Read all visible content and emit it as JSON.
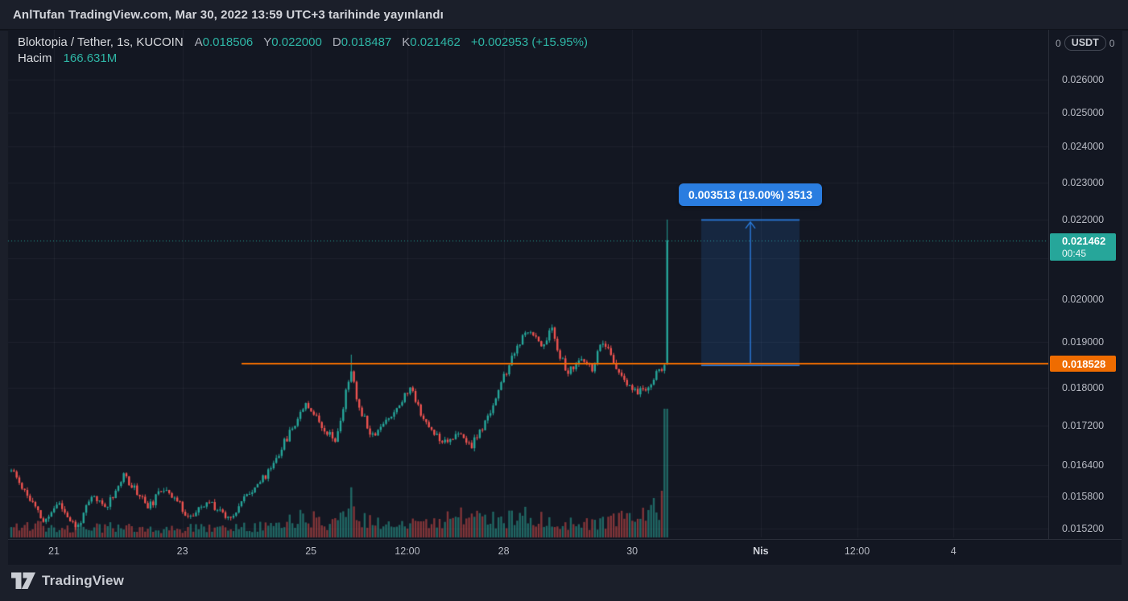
{
  "banner": {
    "text": "AnlTufan TradingView.com, Mar 30, 2022 13:59 UTC+3 tarihinde yayınlandı"
  },
  "legend": {
    "title": "Bloktopia / Tether, 1s, KUCOIN",
    "ohlc": [
      {
        "label": "A",
        "value": "0.018506"
      },
      {
        "label": "Y",
        "value": "0.022000"
      },
      {
        "label": "D",
        "value": "0.018487"
      },
      {
        "label": "K",
        "value": "0.021462"
      }
    ],
    "change": "+0.002953 (+15.95%)",
    "volume_label": "Hacim",
    "volume_value": "166.631M"
  },
  "price_scale": {
    "unit_left": "0",
    "unit": "USDT",
    "unit_right": "0",
    "last_badge": {
      "price": "0.021462",
      "countdown": "00:45",
      "color": "#26a69a"
    },
    "level_badge": {
      "price": "0.018528",
      "color": "#ef6c00"
    }
  },
  "footer": {
    "brand": "TradingView"
  },
  "chart_data": {
    "type": "candlestick",
    "title": "Bloktopia / Tether, 1s, KUCOIN",
    "exchange": "KUCOIN",
    "interval": "1s",
    "yscale": "log",
    "ylim": [
      0.01495,
      0.0278
    ],
    "x_domain": [
      "Mar 20 2022",
      "Apr 5 2022"
    ],
    "last_bar": {
      "open": 0.018506,
      "high": 0.022,
      "low": 0.018487,
      "close": 0.021462,
      "volume": "166.631M"
    },
    "y_ticks": [
      {
        "label": "0.026000",
        "p": 0.026
      },
      {
        "label": "0.025000",
        "p": 0.025
      },
      {
        "label": "0.024000",
        "p": 0.024
      },
      {
        "label": "0.023000",
        "p": 0.023
      },
      {
        "label": "0.022000",
        "p": 0.022
      },
      {
        "label": "0.020000",
        "p": 0.02
      },
      {
        "label": "0.019000",
        "p": 0.019
      },
      {
        "label": "0.018000",
        "p": 0.018
      },
      {
        "label": "0.017200",
        "p": 0.0172
      },
      {
        "label": "0.016400",
        "p": 0.0164
      },
      {
        "label": "0.015800",
        "p": 0.0158
      },
      {
        "label": "0.015200",
        "p": 0.0152
      }
    ],
    "grid_prices": [
      0.026,
      0.025,
      0.024,
      0.023,
      0.022,
      0.021,
      0.02,
      0.019,
      0.018,
      0.0172,
      0.0164,
      0.0158,
      0.0152
    ],
    "x_ticks": [
      {
        "label": "21",
        "t": 1.0
      },
      {
        "label": "23",
        "t": 3.0
      },
      {
        "label": "25",
        "t": 5.0
      },
      {
        "label": "12:00",
        "t": 6.5
      },
      {
        "label": "28",
        "t": 8.0
      },
      {
        "label": "30",
        "t": 10.0
      },
      {
        "label": "Nis",
        "t": 12.0,
        "bold": true
      },
      {
        "label": "12:00",
        "t": 13.5
      },
      {
        "label": "4",
        "t": 15.0
      }
    ],
    "price_anchors": [
      [
        0.336,
        0.0163
      ],
      [
        0.5,
        0.016
      ],
      [
        0.85,
        0.0153
      ],
      [
        1.06,
        0.0157
      ],
      [
        1.35,
        0.0152
      ],
      [
        1.6,
        0.0158
      ],
      [
        1.8,
        0.0156
      ],
      [
        2.1,
        0.0162
      ],
      [
        2.48,
        0.0156
      ],
      [
        2.73,
        0.016
      ],
      [
        3.11,
        0.0154
      ],
      [
        3.42,
        0.0157
      ],
      [
        3.73,
        0.0154
      ],
      [
        4.05,
        0.0159
      ],
      [
        4.3,
        0.0162
      ],
      [
        4.48,
        0.0166
      ],
      [
        4.73,
        0.0172
      ],
      [
        4.92,
        0.0177
      ],
      [
        5.17,
        0.0172
      ],
      [
        5.4,
        0.0169
      ],
      [
        5.62,
        0.0184
      ],
      [
        5.72,
        0.0177
      ],
      [
        5.95,
        0.017
      ],
      [
        6.18,
        0.0173
      ],
      [
        6.4,
        0.0177
      ],
      [
        6.55,
        0.018
      ],
      [
        6.8,
        0.0172
      ],
      [
        7.05,
        0.0169
      ],
      [
        7.3,
        0.017
      ],
      [
        7.5,
        0.0168
      ],
      [
        7.7,
        0.0172
      ],
      [
        7.88,
        0.0178
      ],
      [
        8.06,
        0.0184
      ],
      [
        8.25,
        0.019
      ],
      [
        8.43,
        0.0193
      ],
      [
        8.58,
        0.0189
      ],
      [
        8.75,
        0.0193
      ],
      [
        8.88,
        0.0187
      ],
      [
        9.0,
        0.0183
      ],
      [
        9.18,
        0.0186
      ],
      [
        9.37,
        0.0184
      ],
      [
        9.54,
        0.019
      ],
      [
        9.7,
        0.0186
      ],
      [
        9.87,
        0.0181
      ],
      [
        10.06,
        0.0179
      ],
      [
        10.25,
        0.018
      ],
      [
        10.42,
        0.0184
      ],
      [
        10.545,
        0.0185
      ]
    ],
    "volume_anchors": [
      [
        0.336,
        0.08
      ],
      [
        0.7,
        0.11
      ],
      [
        1.1,
        0.07
      ],
      [
        1.6,
        0.08
      ],
      [
        2.1,
        0.09
      ],
      [
        2.6,
        0.06
      ],
      [
        3.1,
        0.08
      ],
      [
        3.6,
        0.07
      ],
      [
        4.1,
        0.09
      ],
      [
        4.5,
        0.11
      ],
      [
        4.9,
        0.17
      ],
      [
        5.3,
        0.11
      ],
      [
        5.62,
        0.32
      ],
      [
        5.8,
        0.17
      ],
      [
        6.2,
        0.09
      ],
      [
        6.6,
        0.11
      ],
      [
        7.0,
        0.13
      ],
      [
        7.5,
        0.19
      ],
      [
        7.9,
        0.14
      ],
      [
        8.3,
        0.19
      ],
      [
        8.7,
        0.13
      ],
      [
        9.1,
        0.11
      ],
      [
        9.5,
        0.13
      ],
      [
        9.9,
        0.17
      ],
      [
        10.2,
        0.21
      ],
      [
        10.42,
        0.26
      ],
      [
        10.545,
        1.0
      ]
    ],
    "overlays": {
      "horizontal_line": {
        "price": 0.018528,
        "from_t": 3.92,
        "color": "#ef6c00"
      },
      "current_price_line": {
        "price": 0.021462,
        "style": "dotted",
        "color": "#26a69a"
      },
      "price_range_measure": {
        "from_price": 0.018487,
        "to_price": 0.022,
        "from_t": 11.075,
        "to_t": 12.605,
        "label": "0.003513 (19.00%) 3513",
        "color": "#2a7de0"
      }
    },
    "colors": {
      "up": "#26a69a",
      "down": "#ef5350",
      "vol_up": "rgba(44,170,155,0.55)",
      "vol_down": "rgba(239,83,80,0.5)",
      "bg": "#131722",
      "grid": "rgba(240,243,250,0.05)",
      "accent_orange": "#ef6c00",
      "accent_blue": "#2a7de0",
      "accent_teal": "#26a69a"
    }
  }
}
